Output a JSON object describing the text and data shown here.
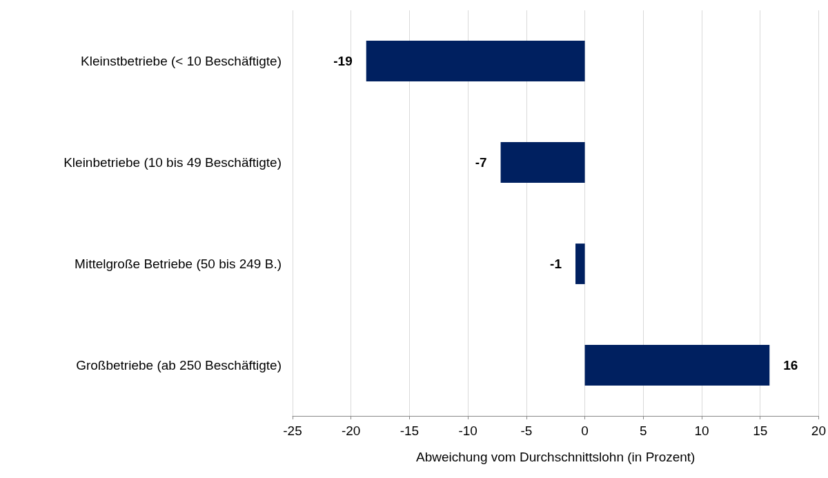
{
  "chart_data": {
    "type": "bar",
    "orientation": "horizontal",
    "xlabel": "Abweichung vom Durchschnittslohn (in Prozent)",
    "categories": [
      "Kleinstbetriebe (< 10 Beschäftigte)",
      "Kleinbetriebe (10 bis 49 Beschäftigte)",
      "Mittelgroße Betriebe (50 bis 249 B.)",
      "Großbetriebe (ab 250 Beschäftigte)"
    ],
    "values": [
      -18.7,
      -7.2,
      -0.8,
      15.8
    ],
    "value_labels": [
      "-19",
      "-7",
      "-1",
      "16"
    ],
    "color": "#002060",
    "xlim": [
      -25,
      20
    ],
    "xticks": [
      -25,
      -20,
      -15,
      -10,
      -5,
      0,
      5,
      10,
      15,
      20
    ],
    "grid": "x"
  }
}
